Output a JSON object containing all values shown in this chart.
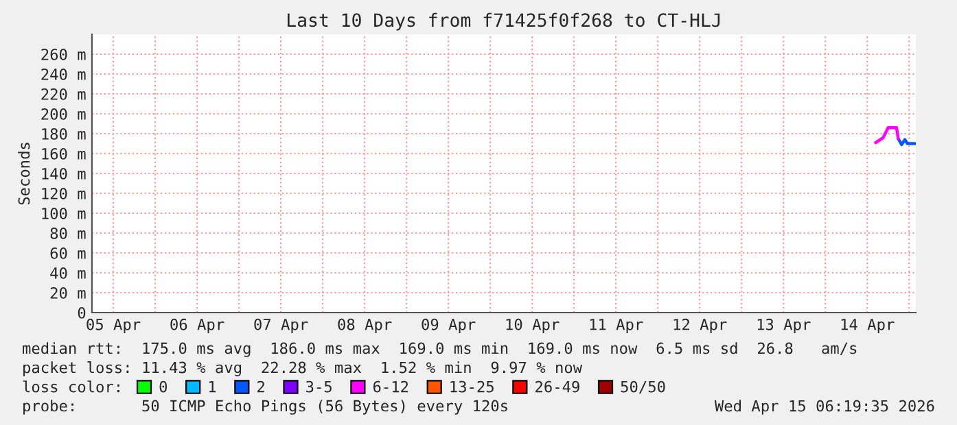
{
  "chart_data": {
    "type": "line",
    "title": "Last 10 Days from f71425f0f268 to CT-HLJ",
    "ylabel": "Seconds",
    "x": [
      "2026-04-14T14:24",
      "2026-04-14T16:34",
      "2026-04-14T18:00",
      "2026-04-14T20:24",
      "2026-04-14T20:53",
      "2026-04-14T21:50",
      "2026-04-14T22:48",
      "2026-04-14T23:31",
      "2026-04-15T01:41"
    ],
    "series": [
      {
        "name": "0",
        "color": "#00ff00",
        "values": [
          null,
          null,
          null,
          null,
          null,
          null,
          null,
          null,
          null
        ]
      },
      {
        "name": "1",
        "color": "#00b8ff",
        "values": [
          null,
          null,
          null,
          null,
          null,
          null,
          null,
          null,
          null
        ]
      },
      {
        "name": "2",
        "color": "#0059ff",
        "values": [
          null,
          null,
          null,
          null,
          175,
          169,
          174,
          170,
          170
        ]
      },
      {
        "name": "3-5",
        "color": "#7e00ff",
        "values": [
          null,
          null,
          null,
          null,
          null,
          null,
          null,
          null,
          null
        ]
      },
      {
        "name": "6-12",
        "color": "#ff00ff",
        "values": [
          171,
          176,
          186,
          186,
          175,
          null,
          null,
          null,
          null
        ]
      },
      {
        "name": "13-25",
        "color": "#ff5500",
        "values": [
          null,
          null,
          null,
          null,
          null,
          null,
          null,
          null,
          null
        ]
      },
      {
        "name": "26-49",
        "color": "#ff0000",
        "values": [
          null,
          null,
          null,
          null,
          null,
          null,
          null,
          null,
          null
        ]
      },
      {
        "name": "50/50",
        "color": "#a00000",
        "values": [
          null,
          null,
          null,
          null,
          null,
          null,
          null,
          null,
          null
        ]
      }
    ],
    "legend_title": "loss color:",
    "legend": "bottom",
    "xlim": [
      "2026-04-05T05:54",
      "2026-04-15T01:55"
    ],
    "ylim": [
      0,
      280
    ],
    "xticks": [
      {
        "value": "2026-04-05T12:00",
        "label": "05 Apr"
      },
      {
        "value": "2026-04-06T12:00",
        "label": "06 Apr"
      },
      {
        "value": "2026-04-07T12:00",
        "label": "07 Apr"
      },
      {
        "value": "2026-04-08T12:00",
        "label": "08 Apr"
      },
      {
        "value": "2026-04-09T12:00",
        "label": "09 Apr"
      },
      {
        "value": "2026-04-10T12:00",
        "label": "10 Apr"
      },
      {
        "value": "2026-04-11T12:00",
        "label": "11 Apr"
      },
      {
        "value": "2026-04-12T12:00",
        "label": "12 Apr"
      },
      {
        "value": "2026-04-13T12:00",
        "label": "13 Apr"
      },
      {
        "value": "2026-04-14T12:00",
        "label": "14 Apr"
      },
      {
        "value": "2026-04-06",
        "label": null
      },
      {
        "value": "2026-04-07",
        "label": null
      },
      {
        "value": "2026-04-08",
        "label": null
      },
      {
        "value": "2026-04-09",
        "label": null
      },
      {
        "value": "2026-04-10",
        "label": null
      },
      {
        "value": "2026-04-11",
        "label": null
      },
      {
        "value": "2026-04-12",
        "label": null
      },
      {
        "value": "2026-04-13",
        "label": null
      },
      {
        "value": "2026-04-14",
        "label": null
      },
      {
        "value": "2026-04-15",
        "label": null
      }
    ],
    "yticks": [
      0,
      {
        "value": 20,
        "label": "20 m"
      },
      {
        "value": 40,
        "label": "40 m"
      },
      {
        "value": 60,
        "label": "60 m"
      },
      {
        "value": 80,
        "label": "80 m"
      },
      {
        "value": 100,
        "label": "100 m"
      },
      {
        "value": 120,
        "label": "120 m"
      },
      {
        "value": 140,
        "label": "140 m"
      },
      {
        "value": 160,
        "label": "160 m"
      },
      {
        "value": 180,
        "label": "180 m"
      },
      {
        "value": 200,
        "label": "200 m"
      },
      {
        "value": 220,
        "label": "220 m"
      },
      {
        "value": 240,
        "label": "240 m"
      },
      {
        "value": 260,
        "label": "260 m"
      }
    ],
    "grid": true,
    "marker": "none",
    "line_style": "solid",
    "annotations": [
      "median rtt:  175.0 ms avg  186.0 ms max  169.0 ms min  169.0 ms now  6.5 ms sd  26.8   am/s",
      "packet loss: 11.43 % avg  22.28 % max  1.52 % min  9.97 % now",
      "probe:       50 ICMP Echo Pings (56 Bytes) every 120s",
      "Wed Apr 15 06:19:35 2026"
    ]
  }
}
